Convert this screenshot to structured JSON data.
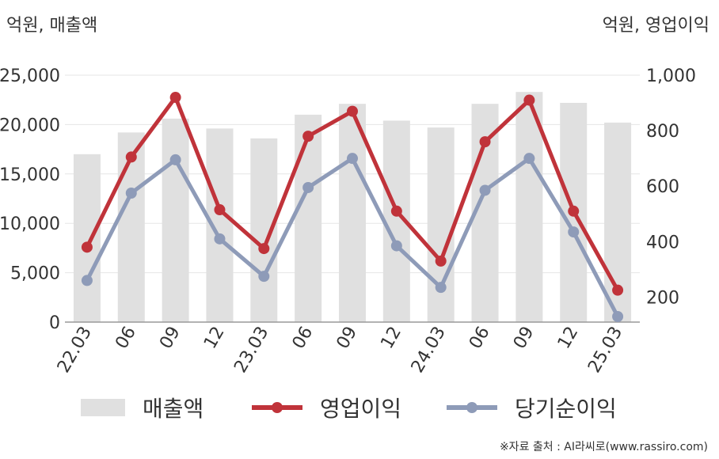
{
  "units": {
    "left": "억원, 매출액",
    "right": "억원, 영업이익"
  },
  "source": "※자료 출처 : AI라씨로(www.rassiro.com)",
  "chart_data": {
    "type": "bar+line",
    "categories": [
      "22.03",
      "06",
      "09",
      "12",
      "23.03",
      "06",
      "09",
      "12",
      "24.03",
      "06",
      "09",
      "12",
      "25.03"
    ],
    "left_axis": {
      "ylim": [
        0,
        25000
      ],
      "ticks": [
        "0",
        "5,000",
        "10,000",
        "15,000",
        "20,000",
        "25,000"
      ],
      "tick_values": [
        0,
        5000,
        10000,
        15000,
        20000,
        25000
      ]
    },
    "right_axis": {
      "ylim": [
        110,
        1000
      ],
      "ticks": [
        "200",
        "400",
        "600",
        "800",
        "1,000"
      ],
      "tick_values": [
        200,
        400,
        600,
        800,
        1000
      ]
    },
    "series": [
      {
        "name": "매출액",
        "type": "bar",
        "axis": "left",
        "color": "#e0e0e0",
        "values": [
          17000,
          19200,
          20600,
          19600,
          18600,
          21000,
          22100,
          20400,
          19700,
          22100,
          23300,
          22200,
          20200
        ]
      },
      {
        "name": "영업이익",
        "type": "line",
        "axis": "right",
        "color": "#c0333a",
        "values": [
          380,
          705,
          920,
          515,
          375,
          780,
          870,
          510,
          330,
          760,
          910,
          510,
          225
        ]
      },
      {
        "name": "당기순이익",
        "type": "line",
        "axis": "right",
        "color": "#8e9bb8",
        "values": [
          260,
          575,
          695,
          410,
          275,
          595,
          700,
          385,
          235,
          585,
          700,
          435,
          130
        ]
      }
    ],
    "grid": true,
    "legend": "bottom"
  }
}
